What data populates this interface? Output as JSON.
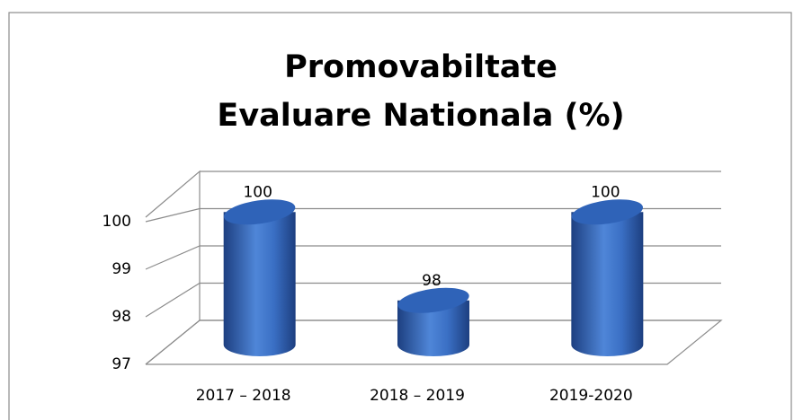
{
  "chart_data": {
    "type": "bar3d",
    "title": [
      "Promovabiltate",
      "Evaluare Nationala (%)"
    ],
    "categories": [
      "2017 – 2018",
      "2018 – 2019",
      "2019-2020"
    ],
    "values": [
      100,
      98,
      100
    ],
    "color": "#3a6fc4",
    "ylim": [
      97,
      101
    ],
    "yticks": [
      97,
      98,
      99,
      100
    ],
    "grid": true
  }
}
